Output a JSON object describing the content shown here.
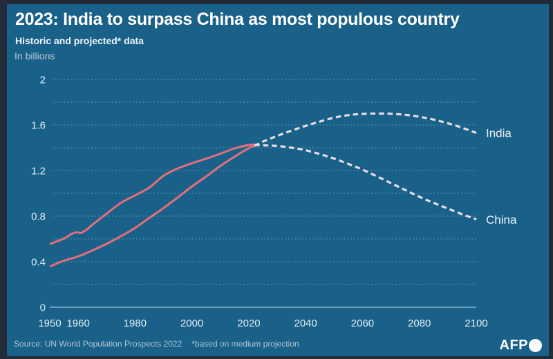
{
  "colors": {
    "background": "#1a6189",
    "frame": "#232b38",
    "historic_line": "#e56e7b",
    "projected_line": "#e8dde2",
    "gridline": "rgba(255,255,255,0.32)",
    "axis_line": "rgba(205,228,240,0.75)",
    "title_text": "#ffffff",
    "muted_text": "#b9cbd5"
  },
  "footer": {
    "source": "Source: UN World Population Prospects 2022",
    "note": "*based on medium projection",
    "logo": "AFP",
    "logo_dot_icon": "white-filled-circle"
  },
  "chart_data": {
    "type": "line",
    "title": "2023: India to surpass China as most populous country",
    "subtitle": "Historic and projected* data",
    "xlabel": "",
    "ylabel": "In billions",
    "xlim": [
      1950,
      2100
    ],
    "ylim": [
      0,
      2
    ],
    "grid_step": 0.2,
    "grid_style": "dashed",
    "x_ticks": [
      1950,
      1960,
      1980,
      2000,
      2020,
      2040,
      2060,
      2080,
      2100
    ],
    "y_ticks": [
      0,
      0.4,
      0.8,
      1.2,
      1.6,
      2
    ],
    "y_tick_labels": [
      "0",
      "0.4",
      "0.8",
      "1.2",
      "1.6",
      "2"
    ],
    "legend_position": "right-end-of-line",
    "series": [
      {
        "name": "India",
        "end_label": "India",
        "segments": [
          {
            "label": "historic",
            "style": "solid",
            "points": [
              [
                1950,
                0.357
              ],
              [
                1955,
                0.409
              ],
              [
                1960,
                0.446
              ],
              [
                1965,
                0.499
              ],
              [
                1970,
                0.557
              ],
              [
                1975,
                0.623
              ],
              [
                1980,
                0.696
              ],
              [
                1985,
                0.784
              ],
              [
                1990,
                0.87
              ],
              [
                1995,
                0.964
              ],
              [
                2000,
                1.06
              ],
              [
                2005,
                1.148
              ],
              [
                2010,
                1.24
              ],
              [
                2015,
                1.322
              ],
              [
                2020,
                1.396
              ],
              [
                2022,
                1.417
              ]
            ]
          },
          {
            "label": "projected",
            "style": "dashed",
            "points": [
              [
                2022,
                1.417
              ],
              [
                2025,
                1.454
              ],
              [
                2030,
                1.504
              ],
              [
                2035,
                1.55
              ],
              [
                2040,
                1.592
              ],
              [
                2045,
                1.63
              ],
              [
                2050,
                1.664
              ],
              [
                2055,
                1.686
              ],
              [
                2060,
                1.697
              ],
              [
                2065,
                1.7
              ],
              [
                2070,
                1.698
              ],
              [
                2075,
                1.689
              ],
              [
                2080,
                1.672
              ],
              [
                2085,
                1.647
              ],
              [
                2090,
                1.615
              ],
              [
                2095,
                1.576
              ],
              [
                2100,
                1.53
              ]
            ]
          }
        ]
      },
      {
        "name": "China",
        "end_label": "China",
        "segments": [
          {
            "label": "historic",
            "style": "solid",
            "points": [
              [
                1950,
                0.554
              ],
              [
                1955,
                0.603
              ],
              [
                1958,
                0.648
              ],
              [
                1960,
                0.657
              ],
              [
                1961,
                0.652
              ],
              [
                1963,
                0.682
              ],
              [
                1965,
                0.724
              ],
              [
                1970,
                0.822
              ],
              [
                1975,
                0.916
              ],
              [
                1980,
                0.982
              ],
              [
                1985,
                1.051
              ],
              [
                1990,
                1.154
              ],
              [
                1995,
                1.218
              ],
              [
                2000,
                1.264
              ],
              [
                2005,
                1.304
              ],
              [
                2010,
                1.348
              ],
              [
                2015,
                1.394
              ],
              [
                2020,
                1.424
              ],
              [
                2022,
                1.426
              ]
            ]
          },
          {
            "label": "projected",
            "style": "dashed",
            "points": [
              [
                2022,
                1.426
              ],
              [
                2025,
                1.421
              ],
              [
                2030,
                1.416
              ],
              [
                2035,
                1.4
              ],
              [
                2040,
                1.378
              ],
              [
                2045,
                1.344
              ],
              [
                2050,
                1.305
              ],
              [
                2055,
                1.258
              ],
              [
                2060,
                1.208
              ],
              [
                2065,
                1.15
              ],
              [
                2070,
                1.089
              ],
              [
                2075,
                1.029
              ],
              [
                2080,
                0.97
              ],
              [
                2085,
                0.916
              ],
              [
                2090,
                0.866
              ],
              [
                2095,
                0.817
              ],
              [
                2100,
                0.771
              ]
            ]
          }
        ]
      }
    ]
  }
}
